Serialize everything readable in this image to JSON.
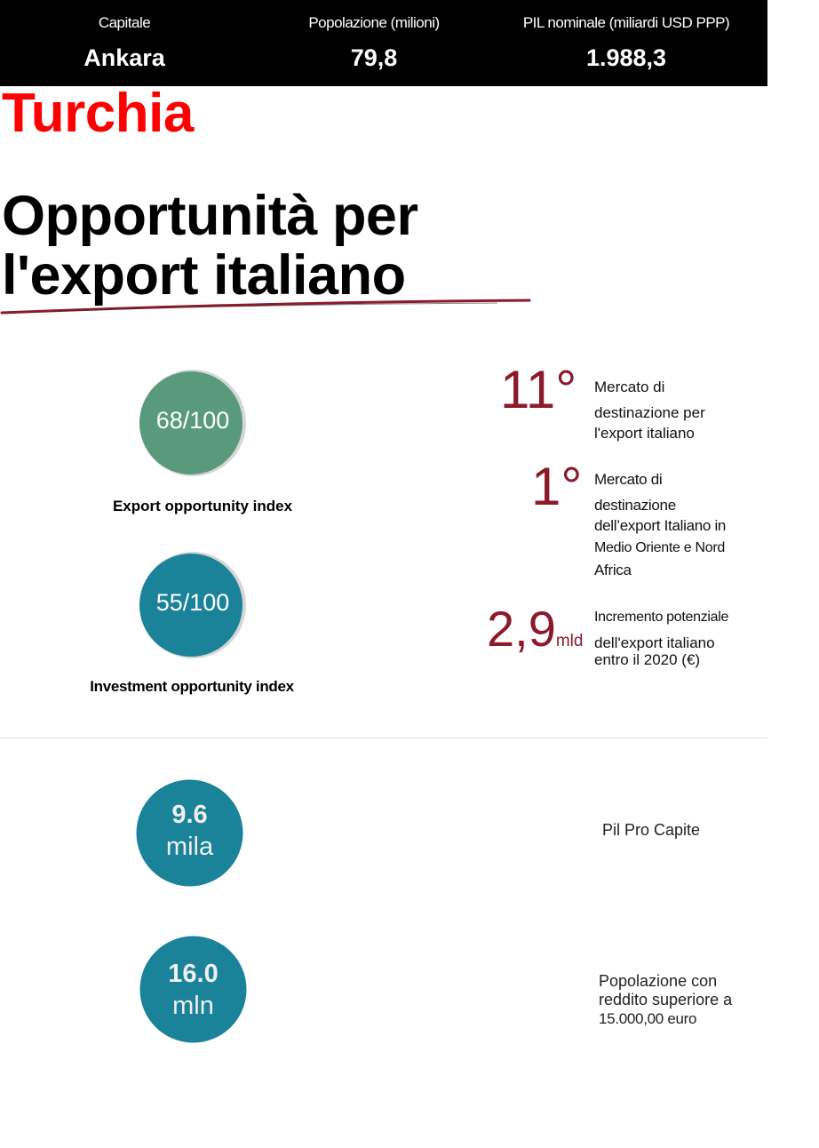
{
  "header": {
    "stats": [
      {
        "label": "Capitale",
        "value": "Ankara"
      },
      {
        "label": "Popolazione (milioni)",
        "value": "79,8"
      },
      {
        "label": "PIL nominale (miliardi USD PPP)",
        "value": "1.988,3"
      }
    ]
  },
  "country": "Turchia",
  "headline": {
    "line1": "Opportunità per",
    "line2": "l'export italiano"
  },
  "indices": [
    {
      "value_text": "68/100",
      "score": 68,
      "label": "Export opportunity index",
      "color": "#5a9a7c"
    },
    {
      "value_text": "55/100",
      "score": 55,
      "label": "Investment opportunity index",
      "color": "#1a8299"
    }
  ],
  "rankings": [
    {
      "number": "11°",
      "text_lines": [
        "Mercato di",
        "destinazione per",
        "l'export italiano"
      ]
    },
    {
      "number": "1°",
      "text_lines": [
        "Mercato di",
        "destinazione",
        "dell’export Italiano in",
        "Medio Oriente e Nord",
        "Africa"
      ]
    },
    {
      "number": "2,9",
      "unit": "mld",
      "text_lines": [
        "Incremento potenziale",
        "dell'export italiano",
        "entro il 2020 (€)"
      ]
    }
  ],
  "kpis": [
    {
      "number": "9.6",
      "unit": "mila",
      "label_lines": [
        "Pil Pro Capite"
      ]
    },
    {
      "number": "16.0",
      "unit": "mln",
      "label_lines": [
        "Popolazione con",
        "reddito superiore a",
        "15.000,00 euro"
      ]
    }
  ],
  "colors": {
    "accent_red": "#ff0000",
    "ranking_red": "#8b1a2b",
    "teal": "#1a8299",
    "green": "#5a9a7c",
    "ring_grey": "#d6d6d6"
  }
}
